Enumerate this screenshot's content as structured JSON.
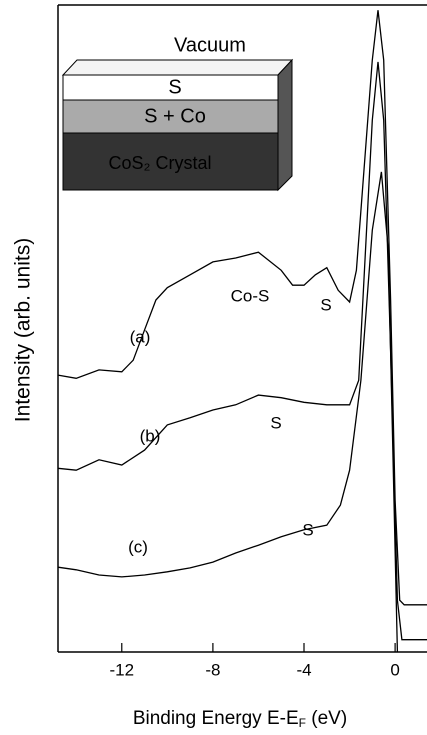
{
  "chart_data": {
    "type": "line",
    "y_label": "Intensity (arb. units)",
    "x_label": {
      "text": "Binding Energy E-E",
      "subscript": "F",
      "suffix": " (eV)"
    },
    "xlim": [
      -14.8,
      1.4
    ],
    "ylim": [
      0,
      100
    ],
    "xticks": [
      -12,
      -8,
      -4,
      0
    ],
    "series": [
      {
        "name": "(a)",
        "color": "#000000",
        "x": [
          -14.8,
          -14,
          -13,
          -12,
          -11.5,
          -11,
          -10.5,
          -10,
          -9,
          -8,
          -7,
          -6,
          -5,
          -4.5,
          -4,
          -3.5,
          -3,
          -2.5,
          -2,
          -1.7,
          -1.3,
          -1,
          -0.75,
          -0.5,
          -0.2,
          0,
          0.2,
          0.4,
          1.4
        ],
        "values": [
          42.8,
          42.3,
          43.6,
          43.3,
          45.1,
          49.8,
          54.4,
          56.3,
          58.3,
          60.3,
          60.9,
          61.8,
          59.0,
          56.7,
          56.7,
          58.3,
          59.4,
          55.9,
          54.1,
          59.0,
          77.6,
          91.5,
          99.2,
          91.5,
          54.4,
          23.5,
          8.0,
          7.3,
          7.3
        ]
      },
      {
        "name": "(b)",
        "color": "#000000",
        "x": [
          -14.8,
          -14,
          -13,
          -12,
          -11,
          -10,
          -9,
          -8,
          -7,
          -6,
          -5,
          -4,
          -3,
          -2,
          -1.6,
          -1.3,
          -1,
          -0.75,
          -0.5,
          -0.2,
          0.1,
          0.3,
          1.4
        ],
        "values": [
          28.4,
          28.1,
          29.7,
          28.9,
          31.2,
          35.1,
          36.2,
          37.4,
          38.2,
          39.7,
          39.3,
          38.6,
          38.2,
          38.2,
          42.0,
          62.1,
          82.2,
          91.2,
          82.2,
          46.7,
          8.0,
          1.9,
          1.9
        ]
      },
      {
        "name": "(c)",
        "color": "#000000",
        "x": [
          -14.8,
          -14,
          -13,
          -12,
          -11,
          -10,
          -9,
          -8,
          -7,
          -6,
          -5,
          -4,
          -3,
          -2.4,
          -2,
          -1.5,
          -1,
          -0.6,
          -0.3,
          0,
          0.1
        ],
        "values": [
          13.1,
          12.7,
          11.9,
          11.6,
          11.9,
          12.4,
          13.0,
          13.9,
          15.3,
          16.5,
          17.8,
          18.9,
          19.6,
          22.7,
          28.1,
          42.0,
          65.2,
          74.2,
          62.1,
          15.8,
          0
        ]
      }
    ],
    "annotations": [
      "Co-S",
      "S",
      "S",
      "S"
    ],
    "inset": {
      "title": "Vacuum",
      "layers": [
        "S",
        "S + Co",
        "CoS₂ Crystal"
      ]
    }
  }
}
